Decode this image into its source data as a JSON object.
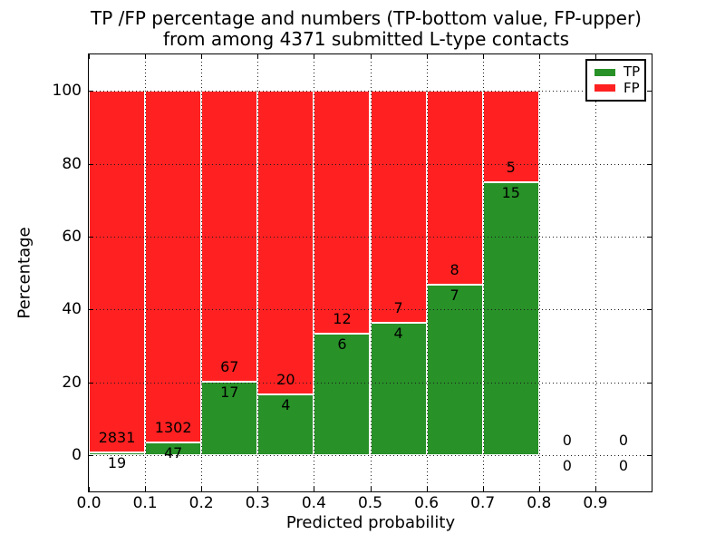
{
  "figure": {
    "title_line1": "TP /FP percentage and numbers (TP-bottom value, FP-upper)",
    "title_line2": "from among 4371 submitted L-type contacts"
  },
  "colors": {
    "tp_green": "#289128",
    "fp_red": "#ff2121",
    "bar_edge": "#ffffff",
    "grid": "#1a1a1a",
    "axis": "#000000",
    "background": "#ffffff"
  },
  "chart_data": {
    "type": "bar",
    "stacked": true,
    "title": "TP /FP percentage and numbers (TP-bottom value, FP-upper) from among 4371 submitted L-type contacts",
    "xlabel": "Predicted probability",
    "ylabel": "Percentage",
    "xlim": [
      0.0,
      1.0
    ],
    "ylim": [
      -10,
      110
    ],
    "xticks": [
      0.0,
      0.1,
      0.2,
      0.3,
      0.4,
      0.5,
      0.6,
      0.7,
      0.8,
      0.9
    ],
    "xtick_labels": [
      "0.0",
      "0.1",
      "0.2",
      "0.3",
      "0.4",
      "0.5",
      "0.6",
      "0.7",
      "0.8",
      "0.9"
    ],
    "yticks": [
      0,
      20,
      40,
      60,
      80,
      100
    ],
    "ytick_labels": [
      "0",
      "20",
      "40",
      "60",
      "80",
      "100"
    ],
    "grid": "dotted, drawn over bars",
    "legend_position": "upper right",
    "legend": [
      {
        "label": "TP",
        "color": "#289128"
      },
      {
        "label": "FP",
        "color": "#ff2121"
      }
    ],
    "total_submitted_contacts": 4371,
    "bin_width": 0.1,
    "bins": [
      {
        "range": [
          0.0,
          0.1
        ],
        "tp": 19,
        "fp": 2831,
        "tp_pct": 0.67,
        "fp_pct": 99.33
      },
      {
        "range": [
          0.1,
          0.2
        ],
        "tp": 47,
        "fp": 1302,
        "tp_pct": 3.48,
        "fp_pct": 96.52
      },
      {
        "range": [
          0.2,
          0.3
        ],
        "tp": 17,
        "fp": 67,
        "tp_pct": 20.24,
        "fp_pct": 79.76
      },
      {
        "range": [
          0.3,
          0.4
        ],
        "tp": 4,
        "fp": 20,
        "tp_pct": 16.67,
        "fp_pct": 83.33
      },
      {
        "range": [
          0.4,
          0.5
        ],
        "tp": 6,
        "fp": 12,
        "tp_pct": 33.33,
        "fp_pct": 66.67
      },
      {
        "range": [
          0.5,
          0.6
        ],
        "tp": 4,
        "fp": 7,
        "tp_pct": 36.36,
        "fp_pct": 63.64
      },
      {
        "range": [
          0.6,
          0.7
        ],
        "tp": 7,
        "fp": 8,
        "tp_pct": 46.67,
        "fp_pct": 53.33
      },
      {
        "range": [
          0.7,
          0.8
        ],
        "tp": 15,
        "fp": 5,
        "tp_pct": 75.0,
        "fp_pct": 25.0
      },
      {
        "range": [
          0.8,
          0.9
        ],
        "tp": 0,
        "fp": 0,
        "tp_pct": 0,
        "fp_pct": 0
      },
      {
        "range": [
          0.9,
          1.0
        ],
        "tp": 0,
        "fp": 0,
        "tp_pct": 0,
        "fp_pct": 0
      }
    ]
  }
}
